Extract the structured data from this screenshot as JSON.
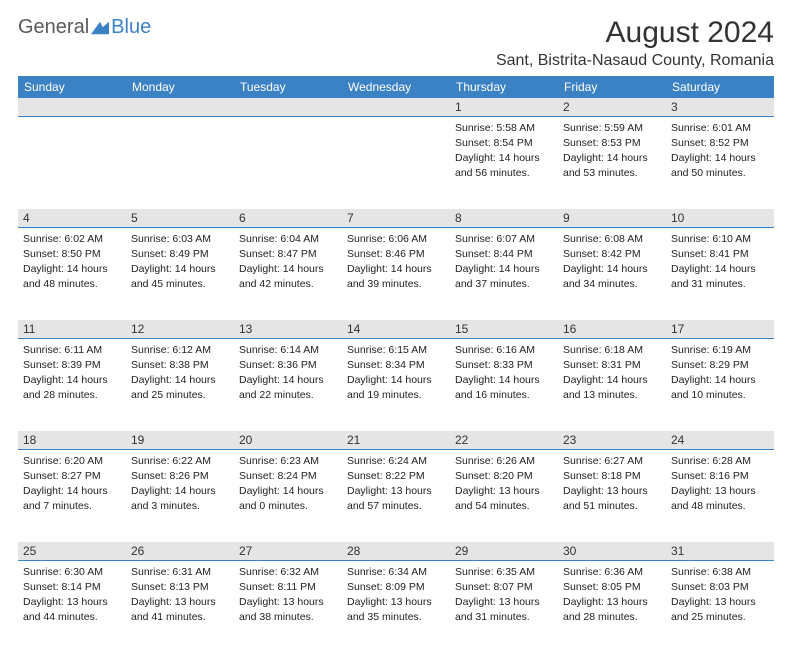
{
  "logo": {
    "general": "General",
    "blue": "Blue"
  },
  "title": "August 2024",
  "location": "Sant, Bistrita-Nasaud County, Romania",
  "day_headers": [
    "Sunday",
    "Monday",
    "Tuesday",
    "Wednesday",
    "Thursday",
    "Friday",
    "Saturday"
  ],
  "colors": {
    "header_bg": "#3b82c4",
    "header_text": "#ffffff",
    "date_row_bg": "#e5e5e5",
    "date_row_border": "#3b82c4",
    "body_text": "#222222",
    "title_text": "#333333"
  },
  "typography": {
    "title_fontsize": 30,
    "location_fontsize": 16,
    "day_header_fontsize": 12,
    "date_fontsize": 12,
    "info_fontsize": 10.5
  },
  "weeks": [
    [
      {
        "date": "",
        "sunrise": "",
        "sunset": "",
        "daylight": ""
      },
      {
        "date": "",
        "sunrise": "",
        "sunset": "",
        "daylight": ""
      },
      {
        "date": "",
        "sunrise": "",
        "sunset": "",
        "daylight": ""
      },
      {
        "date": "",
        "sunrise": "",
        "sunset": "",
        "daylight": ""
      },
      {
        "date": "1",
        "sunrise": "Sunrise: 5:58 AM",
        "sunset": "Sunset: 8:54 PM",
        "daylight": "Daylight: 14 hours and 56 minutes."
      },
      {
        "date": "2",
        "sunrise": "Sunrise: 5:59 AM",
        "sunset": "Sunset: 8:53 PM",
        "daylight": "Daylight: 14 hours and 53 minutes."
      },
      {
        "date": "3",
        "sunrise": "Sunrise: 6:01 AM",
        "sunset": "Sunset: 8:52 PM",
        "daylight": "Daylight: 14 hours and 50 minutes."
      }
    ],
    [
      {
        "date": "4",
        "sunrise": "Sunrise: 6:02 AM",
        "sunset": "Sunset: 8:50 PM",
        "daylight": "Daylight: 14 hours and 48 minutes."
      },
      {
        "date": "5",
        "sunrise": "Sunrise: 6:03 AM",
        "sunset": "Sunset: 8:49 PM",
        "daylight": "Daylight: 14 hours and 45 minutes."
      },
      {
        "date": "6",
        "sunrise": "Sunrise: 6:04 AM",
        "sunset": "Sunset: 8:47 PM",
        "daylight": "Daylight: 14 hours and 42 minutes."
      },
      {
        "date": "7",
        "sunrise": "Sunrise: 6:06 AM",
        "sunset": "Sunset: 8:46 PM",
        "daylight": "Daylight: 14 hours and 39 minutes."
      },
      {
        "date": "8",
        "sunrise": "Sunrise: 6:07 AM",
        "sunset": "Sunset: 8:44 PM",
        "daylight": "Daylight: 14 hours and 37 minutes."
      },
      {
        "date": "9",
        "sunrise": "Sunrise: 6:08 AM",
        "sunset": "Sunset: 8:42 PM",
        "daylight": "Daylight: 14 hours and 34 minutes."
      },
      {
        "date": "10",
        "sunrise": "Sunrise: 6:10 AM",
        "sunset": "Sunset: 8:41 PM",
        "daylight": "Daylight: 14 hours and 31 minutes."
      }
    ],
    [
      {
        "date": "11",
        "sunrise": "Sunrise: 6:11 AM",
        "sunset": "Sunset: 8:39 PM",
        "daylight": "Daylight: 14 hours and 28 minutes."
      },
      {
        "date": "12",
        "sunrise": "Sunrise: 6:12 AM",
        "sunset": "Sunset: 8:38 PM",
        "daylight": "Daylight: 14 hours and 25 minutes."
      },
      {
        "date": "13",
        "sunrise": "Sunrise: 6:14 AM",
        "sunset": "Sunset: 8:36 PM",
        "daylight": "Daylight: 14 hours and 22 minutes."
      },
      {
        "date": "14",
        "sunrise": "Sunrise: 6:15 AM",
        "sunset": "Sunset: 8:34 PM",
        "daylight": "Daylight: 14 hours and 19 minutes."
      },
      {
        "date": "15",
        "sunrise": "Sunrise: 6:16 AM",
        "sunset": "Sunset: 8:33 PM",
        "daylight": "Daylight: 14 hours and 16 minutes."
      },
      {
        "date": "16",
        "sunrise": "Sunrise: 6:18 AM",
        "sunset": "Sunset: 8:31 PM",
        "daylight": "Daylight: 14 hours and 13 minutes."
      },
      {
        "date": "17",
        "sunrise": "Sunrise: 6:19 AM",
        "sunset": "Sunset: 8:29 PM",
        "daylight": "Daylight: 14 hours and 10 minutes."
      }
    ],
    [
      {
        "date": "18",
        "sunrise": "Sunrise: 6:20 AM",
        "sunset": "Sunset: 8:27 PM",
        "daylight": "Daylight: 14 hours and 7 minutes."
      },
      {
        "date": "19",
        "sunrise": "Sunrise: 6:22 AM",
        "sunset": "Sunset: 8:26 PM",
        "daylight": "Daylight: 14 hours and 3 minutes."
      },
      {
        "date": "20",
        "sunrise": "Sunrise: 6:23 AM",
        "sunset": "Sunset: 8:24 PM",
        "daylight": "Daylight: 14 hours and 0 minutes."
      },
      {
        "date": "21",
        "sunrise": "Sunrise: 6:24 AM",
        "sunset": "Sunset: 8:22 PM",
        "daylight": "Daylight: 13 hours and 57 minutes."
      },
      {
        "date": "22",
        "sunrise": "Sunrise: 6:26 AM",
        "sunset": "Sunset: 8:20 PM",
        "daylight": "Daylight: 13 hours and 54 minutes."
      },
      {
        "date": "23",
        "sunrise": "Sunrise: 6:27 AM",
        "sunset": "Sunset: 8:18 PM",
        "daylight": "Daylight: 13 hours and 51 minutes."
      },
      {
        "date": "24",
        "sunrise": "Sunrise: 6:28 AM",
        "sunset": "Sunset: 8:16 PM",
        "daylight": "Daylight: 13 hours and 48 minutes."
      }
    ],
    [
      {
        "date": "25",
        "sunrise": "Sunrise: 6:30 AM",
        "sunset": "Sunset: 8:14 PM",
        "daylight": "Daylight: 13 hours and 44 minutes."
      },
      {
        "date": "26",
        "sunrise": "Sunrise: 6:31 AM",
        "sunset": "Sunset: 8:13 PM",
        "daylight": "Daylight: 13 hours and 41 minutes."
      },
      {
        "date": "27",
        "sunrise": "Sunrise: 6:32 AM",
        "sunset": "Sunset: 8:11 PM",
        "daylight": "Daylight: 13 hours and 38 minutes."
      },
      {
        "date": "28",
        "sunrise": "Sunrise: 6:34 AM",
        "sunset": "Sunset: 8:09 PM",
        "daylight": "Daylight: 13 hours and 35 minutes."
      },
      {
        "date": "29",
        "sunrise": "Sunrise: 6:35 AM",
        "sunset": "Sunset: 8:07 PM",
        "daylight": "Daylight: 13 hours and 31 minutes."
      },
      {
        "date": "30",
        "sunrise": "Sunrise: 6:36 AM",
        "sunset": "Sunset: 8:05 PM",
        "daylight": "Daylight: 13 hours and 28 minutes."
      },
      {
        "date": "31",
        "sunrise": "Sunrise: 6:38 AM",
        "sunset": "Sunset: 8:03 PM",
        "daylight": "Daylight: 13 hours and 25 minutes."
      }
    ]
  ]
}
